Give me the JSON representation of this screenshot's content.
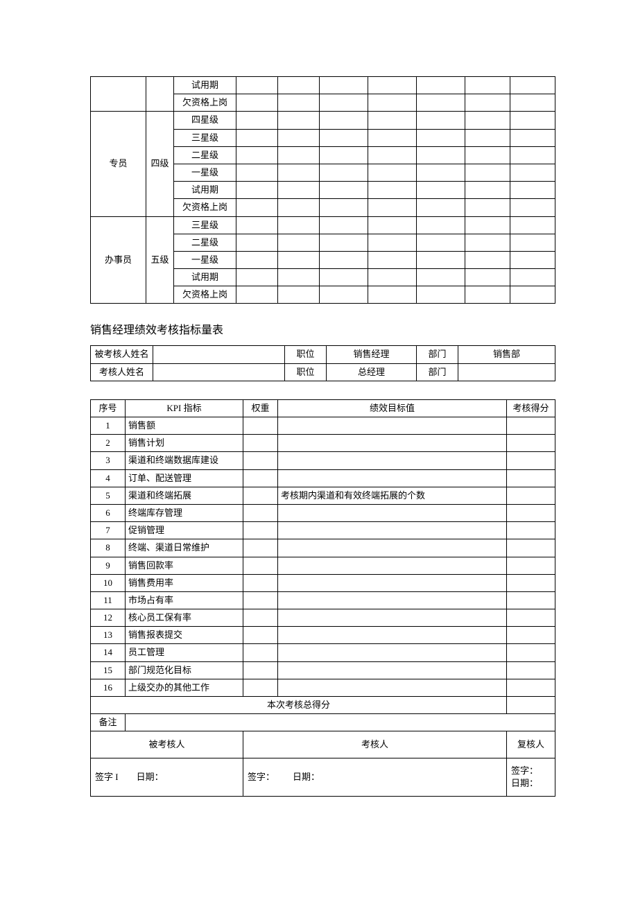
{
  "table1": {
    "group0_levels": [
      "试用期",
      "欠资格上岗"
    ],
    "group1_label": "专员",
    "group1_level": "四级",
    "group1_levels": [
      "四星级",
      "三星级",
      "二星级",
      "一星级",
      "试用期",
      "欠资格上岗"
    ],
    "group2_label": "办事员",
    "group2_level": "五级",
    "group2_levels": [
      "三星级",
      "二星级",
      "一星级",
      "试用期",
      "欠资格上岗"
    ]
  },
  "title2": "销售经理绩效考核指标量表",
  "info": {
    "r1c1": "被考核人姓名",
    "r1c3": "职位",
    "r1c4": "销售经理",
    "r1c5": "部门",
    "r1c6": "销售部",
    "r2c1": "考核人姓名",
    "r2c3": "职位",
    "r2c4": "总经理",
    "r2c5": "部门"
  },
  "kpi": {
    "headers": [
      "序号",
      "KPI 指标",
      "权重",
      "绩效目标值",
      "考核得分"
    ],
    "rows": [
      {
        "n": "1",
        "name": "销售额",
        "target": ""
      },
      {
        "n": "2",
        "name": "销售计划",
        "target": ""
      },
      {
        "n": "3",
        "name": "渠道和终端数据库建设",
        "target": ""
      },
      {
        "n": "4",
        "name": "订单、配送管理",
        "target": ""
      },
      {
        "n": "5",
        "name": "渠道和终端拓展",
        "target": "考核期内渠道和有效终端拓展的个数"
      },
      {
        "n": "6",
        "name": "终端库存管理",
        "target": ""
      },
      {
        "n": "7",
        "name": "促销管理",
        "target": ""
      },
      {
        "n": "8",
        "name": "终端、渠道日常维护",
        "target": ""
      },
      {
        "n": "9",
        "name": "销售回款率",
        "target": ""
      },
      {
        "n": "10",
        "name": "销售费用率",
        "target": ""
      },
      {
        "n": "11",
        "name": "市场占有率",
        "target": ""
      },
      {
        "n": "12",
        "name": "核心员工保有率",
        "target": ""
      },
      {
        "n": "13",
        "name": "销售报表提交",
        "target": ""
      },
      {
        "n": "14",
        "name": "员工管理",
        "target": ""
      },
      {
        "n": "15",
        "name": "部门规范化目标",
        "target": ""
      },
      {
        "n": "16",
        "name": "上级交办的其他工作",
        "target": ""
      }
    ],
    "total_label": "本次考核总得分",
    "remark_label": "备注",
    "sig_headers": [
      "被考核人",
      "考核人",
      "复核人"
    ],
    "sig1": "签字 I",
    "sig_label": "签字：",
    "date_label": "日期："
  },
  "layout": {
    "table1_cols": [
      80,
      40,
      90,
      60,
      60,
      70,
      70,
      70,
      65,
      65
    ],
    "info_cols": [
      90,
      190,
      60,
      130,
      60,
      140
    ],
    "kpi_cols": [
      50,
      170,
      50,
      330,
      70
    ]
  }
}
